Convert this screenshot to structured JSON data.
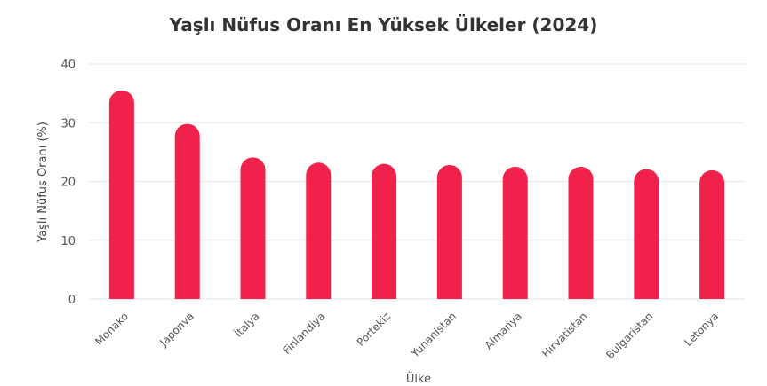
{
  "chart_data": {
    "type": "bar",
    "title": "Yaşlı Nüfus Oranı En Yüksek Ülkeler (2024)",
    "xlabel": "Ülke",
    "ylabel": "Yaşlı Nüfus Oranı (%)",
    "categories": [
      "Monako",
      "Japonya",
      "İtalya",
      "Finlandiya",
      "Portekiz",
      "Yunanistan",
      "Almanya",
      "Hırvatistan",
      "Bulgaristan",
      "Letonya"
    ],
    "values": [
      35.5,
      29.8,
      24.1,
      23.2,
      23.0,
      22.8,
      22.5,
      22.5,
      22.1,
      21.9
    ],
    "ylim": [
      0,
      40
    ],
    "yticks": [
      0,
      10,
      20,
      30,
      40
    ],
    "grid": true,
    "bar_color": "#f0214b"
  }
}
